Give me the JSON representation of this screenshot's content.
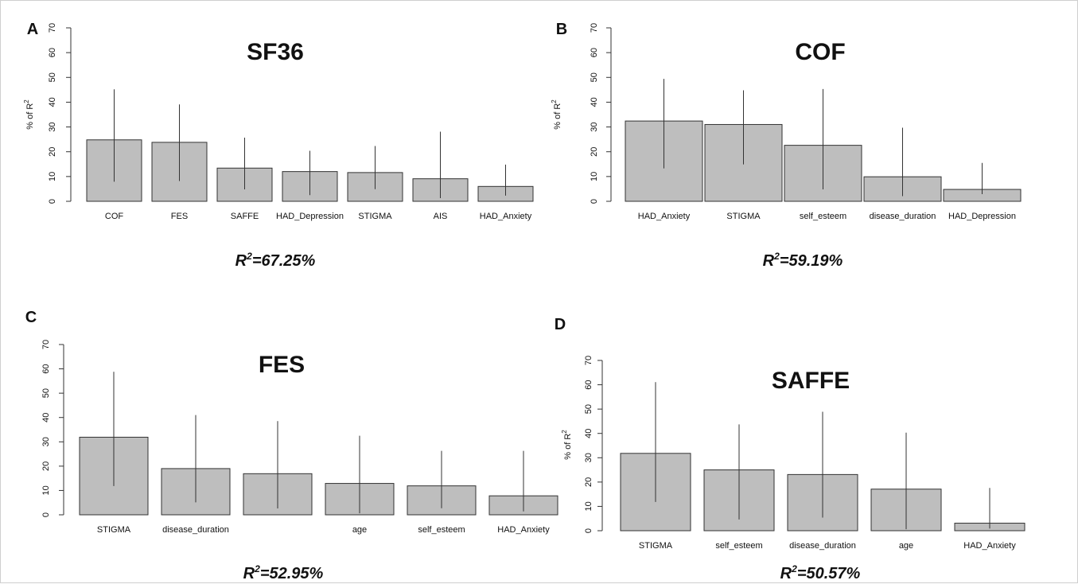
{
  "figure": {
    "panels": [
      {
        "letter": "A",
        "title": "SF36",
        "r2_prefix": "R",
        "r2_sup": "2",
        "r2_value": "=67.25%",
        "ylabel_main": "% of R",
        "ylabel_sup": "2"
      },
      {
        "letter": "B",
        "title": "COF",
        "r2_prefix": "R",
        "r2_sup": "2",
        "r2_value": "=59.19%",
        "ylabel_main": "% of R",
        "ylabel_sup": "2"
      },
      {
        "letter": "C",
        "title": "FES",
        "r2_prefix": "R",
        "r2_sup": "2",
        "r2_value": "=52.95%",
        "ylabel_main": "",
        "ylabel_sup": ""
      },
      {
        "letter": "D",
        "title": "SAFFE",
        "r2_prefix": "R",
        "r2_sup": "2",
        "r2_value": "=50.57%",
        "ylabel_main": "% of R",
        "ylabel_sup": "2"
      }
    ]
  },
  "colors": {
    "bar_fill": "#bebebe",
    "bar_stroke": "#333333",
    "errorbar": "#333333",
    "axis": "#333333"
  },
  "chart_data": [
    {
      "type": "bar",
      "title": "SF36",
      "ylabel": "% of R2",
      "ylim": [
        0,
        70
      ],
      "yticks": [
        0,
        10,
        20,
        30,
        40,
        50,
        60,
        70
      ],
      "categories": [
        "COF",
        "FES",
        "SAFFE",
        "HAD_Depression",
        "STIGMA",
        "AIS",
        "HAD_Anxiety"
      ],
      "values": [
        24.8,
        23.8,
        13.4,
        12.0,
        11.6,
        9.1,
        6.0
      ],
      "ci_low": [
        7.9,
        8.2,
        4.8,
        2.5,
        4.9,
        1.3,
        2.3
      ],
      "ci_high": [
        45.2,
        39.1,
        25.7,
        20.4,
        22.3,
        28.1,
        14.8
      ],
      "annotation": "R2=67.25%"
    },
    {
      "type": "bar",
      "title": "COF",
      "ylabel": "% of R2",
      "ylim": [
        0,
        70
      ],
      "yticks": [
        0,
        10,
        20,
        30,
        40,
        50,
        60,
        70
      ],
      "categories": [
        "HAD_Anxiety",
        "STIGMA",
        "self_esteem",
        "disease_duration",
        "HAD_Depression"
      ],
      "values": [
        32.4,
        31.0,
        22.6,
        9.9,
        4.8
      ],
      "ci_low": [
        13.3,
        14.9,
        4.8,
        2.1,
        2.9
      ],
      "ci_high": [
        49.4,
        44.8,
        45.3,
        29.7,
        15.5
      ],
      "annotation": "R2=59.19%"
    },
    {
      "type": "bar",
      "title": "FES",
      "ylabel": "",
      "ylim": [
        0,
        70
      ],
      "yticks": [
        0,
        10,
        20,
        30,
        40,
        50,
        60,
        70
      ],
      "categories": [
        "STIGMA",
        "disease_duration",
        "",
        "age",
        "self_esteem",
        "HAD_Anxiety"
      ],
      "values": [
        31.9,
        19.0,
        16.9,
        12.9,
        11.9,
        7.8
      ],
      "ci_low": [
        11.8,
        5.1,
        2.6,
        0.6,
        2.7,
        1.4
      ],
      "ci_high": [
        58.8,
        41.0,
        38.5,
        32.5,
        26.3,
        26.3
      ],
      "annotation": "R2=52.95%"
    },
    {
      "type": "bar",
      "title": "SAFFE",
      "ylabel": "% of R2",
      "ylim": [
        0,
        70
      ],
      "yticks": [
        0,
        10,
        20,
        30,
        40,
        50,
        60,
        70
      ],
      "categories": [
        "STIGMA",
        "self_esteem",
        "disease_duration",
        "age",
        "HAD_Anxiety"
      ],
      "values": [
        31.8,
        25.0,
        23.1,
        17.1,
        3.1
      ],
      "ci_low": [
        11.8,
        4.6,
        5.4,
        0.6,
        0.9
      ],
      "ci_high": [
        61.1,
        43.7,
        48.9,
        40.3,
        17.6
      ],
      "annotation": "R2=50.57%"
    }
  ]
}
